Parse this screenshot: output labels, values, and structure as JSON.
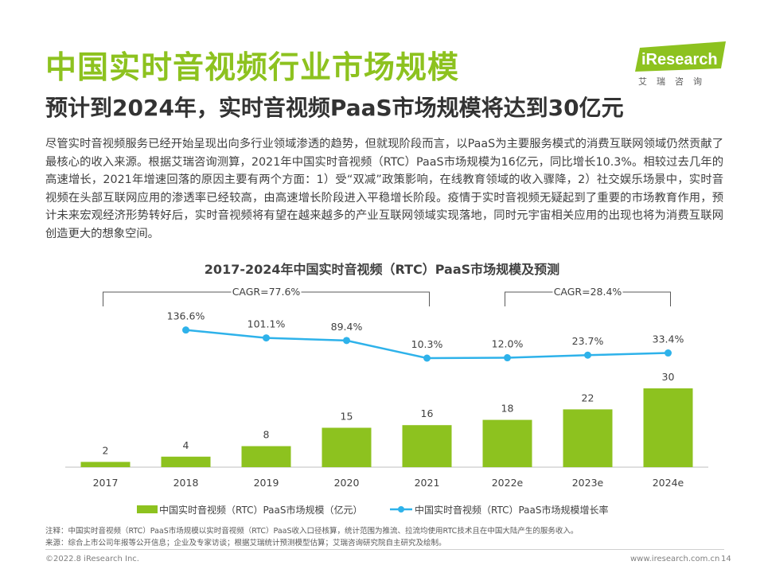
{
  "page": {
    "title": "中国实时音视频行业市场规模",
    "subtitle": "预计到2024年，实时音视频PaaS市场规模将达到30亿元",
    "body": "尽管实时音视频服务已经开始呈现出向多行业领域渗透的趋势，但就现阶段而言，以PaaS为主要服务模式的消费互联网领域仍然贡献了最核心的收入来源。根据艾瑞咨询测算，2021年中国实时音视频（RTC）PaaS市场规模为16亿元，同比增长10.3%。相较过去几年的高速增长，2021年增速回落的原因主要有两个方面：1）受“双减”政策影响，在线教育领域的收入骤降，2）社交娱乐场景中，实时音视频在头部互联网应用的渗透率已经较高，由高速增长阶段进入平稳增长阶段。疫情于实时音视频无疑起到了重要的市场教育作用，预计未来宏观经济形势转好后，实时音视频将有望在越来越多的产业互联网领域实现落地，同时元宇宙相关应用的出现也将为消费互联网创造更大的想象空间。",
    "logo_text": "iResearch",
    "logo_tagline": "艾瑞咨询",
    "note": "注释：中国实时音视频（RTC）PaaS市场规模以实时音视频（RTC）PaaS收入口径核算，统计范围为推流、拉流均使用RTC技术且在中国大陆产生的服务收入。",
    "source": "来源：综合上市公司年报等公开信息；企业及专家访谈；根据艾瑞统计预测模型估算；艾瑞咨询研究院自主研究及绘制。",
    "copyright": "©2022.8 iResearch Inc.",
    "website": "www.iresearch.com.cn",
    "page_number": "14"
  },
  "chart_data": {
    "type": "bar",
    "title": "2017-2024年中国实时音视频（RTC）PaaS市场规模及预测",
    "categories": [
      "2017",
      "2018",
      "2019",
      "2020",
      "2021",
      "2022e",
      "2023e",
      "2024e"
    ],
    "series": [
      {
        "name": "中国实时音视频（RTC）PaaS市场规模（亿元）",
        "type": "bar",
        "color": "#8dc21f",
        "values": [
          2,
          4,
          8,
          15,
          16,
          18,
          22,
          30
        ],
        "labels": [
          "2",
          "4",
          "8",
          "15",
          "16",
          "18",
          "22",
          "30"
        ]
      },
      {
        "name": "中国实时音视频（RTC）PaaS市场规模增长率",
        "type": "line",
        "color": "#2eb2ea",
        "values": [
          null,
          136.6,
          101.1,
          89.4,
          10.3,
          12.0,
          23.7,
          33.4
        ],
        "labels": [
          null,
          "136.6%",
          "101.1%",
          "89.4%",
          "10.3%",
          "12.0%",
          "23.7%",
          "33.4%"
        ]
      }
    ],
    "annotations": [
      {
        "text": "CAGR=77.6%",
        "from": "2017",
        "to": "2021"
      },
      {
        "text": "CAGR=28.4%",
        "from": "2022e",
        "to": "2024e"
      }
    ],
    "legend": "bottom",
    "grid": false
  }
}
